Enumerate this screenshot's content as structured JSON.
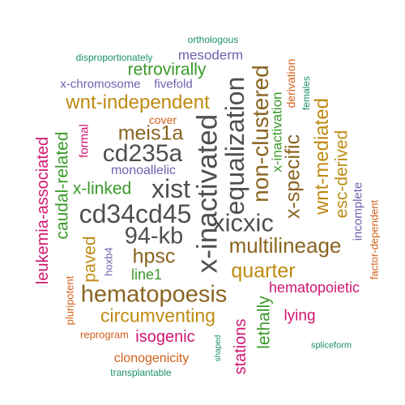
{
  "colors": {
    "green": "#3a9a2a",
    "orange": "#d45f1a",
    "purple": "#6b63b0",
    "magenta": "#d01672",
    "gold": "#bf8a12",
    "brown": "#8a6420",
    "gray": "#4f4f4f",
    "teal": "#1b8f6e"
  },
  "words": [
    {
      "text": "orthologous",
      "color": "teal"
    },
    {
      "text": "disproportionately",
      "color": "teal"
    },
    {
      "text": "mesoderm",
      "color": "purple"
    },
    {
      "text": "retrovirally",
      "color": "green"
    },
    {
      "text": "x-chromosome",
      "color": "purple"
    },
    {
      "text": "fivefold",
      "color": "purple"
    },
    {
      "text": "wnt-independent",
      "color": "gold"
    },
    {
      "text": "cover",
      "color": "orange"
    },
    {
      "text": "meis1a",
      "color": "brown"
    },
    {
      "text": "cd235a",
      "color": "gray"
    },
    {
      "text": "monoallelic",
      "color": "purple"
    },
    {
      "text": "xist",
      "color": "gray"
    },
    {
      "text": "x-linked",
      "color": "green"
    },
    {
      "text": "cd34cd45",
      "color": "gray"
    },
    {
      "text": "94-kb",
      "color": "gray"
    },
    {
      "text": "xicxic",
      "color": "gray"
    },
    {
      "text": "multilineage",
      "color": "brown"
    },
    {
      "text": "hpsc",
      "color": "brown"
    },
    {
      "text": "line1",
      "color": "green"
    },
    {
      "text": "quarter",
      "color": "gold"
    },
    {
      "text": "hematopoesis",
      "color": "brown"
    },
    {
      "text": "hematopoietic",
      "color": "magenta"
    },
    {
      "text": "circumventing",
      "color": "gold"
    },
    {
      "text": "lying",
      "color": "magenta"
    },
    {
      "text": "spliceform",
      "color": "teal"
    },
    {
      "text": "reprogram",
      "color": "orange"
    },
    {
      "text": "isogenic",
      "color": "magenta"
    },
    {
      "text": "clonogenicity",
      "color": "orange"
    },
    {
      "text": "transplantable",
      "color": "teal"
    },
    {
      "text": "leukemia-associated",
      "color": "magenta"
    },
    {
      "text": "caudal-related",
      "color": "green"
    },
    {
      "text": "formal",
      "color": "magenta"
    },
    {
      "text": "paved",
      "color": "gold"
    },
    {
      "text": "hoxb4",
      "color": "purple"
    },
    {
      "text": "pluripotent",
      "color": "orange"
    },
    {
      "text": "x-inactivated",
      "color": "gray"
    },
    {
      "text": "equalization",
      "color": "gray"
    },
    {
      "text": "non-clustered",
      "color": "brown"
    },
    {
      "text": "x-inactivation",
      "color": "green"
    },
    {
      "text": "derivation",
      "color": "orange"
    },
    {
      "text": "x-specific",
      "color": "brown"
    },
    {
      "text": "females",
      "color": "teal"
    },
    {
      "text": "wnt-mediated",
      "color": "gold"
    },
    {
      "text": "esc-derived",
      "color": "gold"
    },
    {
      "text": "incomplete",
      "color": "purple"
    },
    {
      "text": "factor-dependent",
      "color": "orange"
    },
    {
      "text": "shaped",
      "color": "teal"
    },
    {
      "text": "stations",
      "color": "magenta"
    },
    {
      "text": "lethally",
      "color": "green"
    }
  ]
}
